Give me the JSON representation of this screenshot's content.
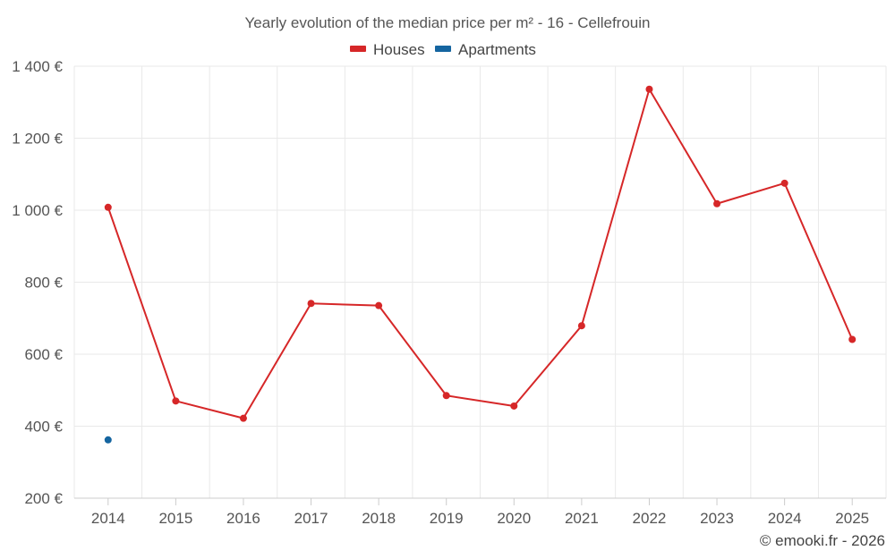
{
  "chart_data": {
    "type": "line",
    "title": "Yearly evolution of the median price per m² - 16 - Cellefrouin",
    "categories": [
      "2014",
      "2015",
      "2016",
      "2017",
      "2018",
      "2019",
      "2020",
      "2021",
      "2022",
      "2023",
      "2024",
      "2025"
    ],
    "series": [
      {
        "name": "Houses",
        "color": "#d62728",
        "values": [
          1008,
          470,
          422,
          741,
          735,
          485,
          456,
          679,
          1336,
          1018,
          1075,
          641
        ]
      },
      {
        "name": "Apartments",
        "color": "#1565a0",
        "values": [
          362,
          null,
          null,
          null,
          null,
          null,
          null,
          null,
          null,
          null,
          null,
          null
        ]
      }
    ],
    "ylim": [
      200,
      1400
    ],
    "yticks": [
      200,
      400,
      600,
      800,
      1000,
      1200,
      1400
    ],
    "ytick_labels": [
      "200 €",
      "400 €",
      "600 €",
      "800 €",
      "1 000 €",
      "1 200 €",
      "1 400 €"
    ],
    "xlabel": "",
    "ylabel": "",
    "grid": true,
    "legend": "top-center"
  },
  "credit": "© emooki.fr - 2026"
}
